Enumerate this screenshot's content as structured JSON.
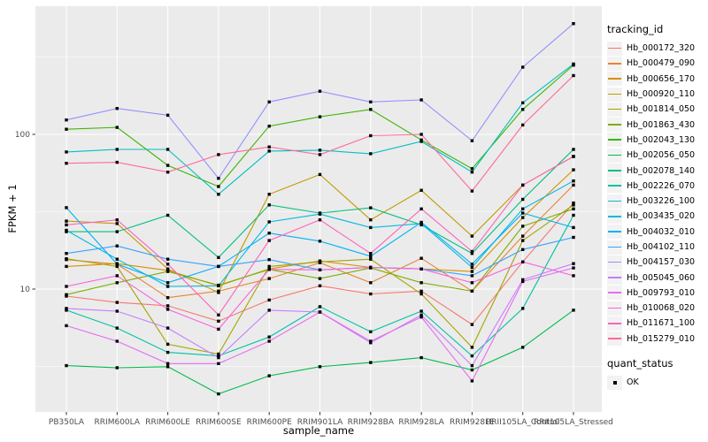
{
  "chart_data": {
    "type": "line",
    "title": "",
    "x_axis": {
      "title": "sample_name",
      "categories": [
        "PB350LA",
        "RRIM600LA",
        "RRIM600LE",
        "RRIM600SE",
        "RRIM600PE",
        "RRIM901LA",
        "RRIM928BA",
        "RRIM928LA",
        "RRIM928LE",
        "RRII105LA_Control",
        "RRII105LA_Stressed"
      ]
    },
    "y_axis": {
      "title": "FPKM + 1",
      "scale": "log10",
      "major_ticks": [
        {
          "value": 10,
          "label": "10"
        },
        {
          "value": 100,
          "label": "100"
        }
      ],
      "minor_ticks": [
        3.162,
        31.62,
        316.23
      ],
      "range": [
        1.6,
        665
      ]
    },
    "legend": {
      "title": "tracking_id"
    },
    "legend2": {
      "title": "quant_status",
      "items": [
        {
          "label": "OK",
          "marker": "filled-square",
          "color": "#000000"
        }
      ]
    },
    "series": [
      {
        "name": "Hb_000172_320",
        "color": "#F8766D",
        "values": [
          9.0,
          8.2,
          7.8,
          6.2,
          8.5,
          10.5,
          9.3,
          9.7,
          5.9,
          15,
          36
        ]
      },
      {
        "name": "Hb_000479_090",
        "color": "#EA8331",
        "values": [
          15.5,
          14.5,
          8.8,
          9.7,
          11.7,
          14.8,
          11.0,
          15.8,
          9.7,
          22,
          47
        ]
      },
      {
        "name": "Hb_000656_170",
        "color": "#D89000",
        "values": [
          14.0,
          14.6,
          13.2,
          10.5,
          13.5,
          15.2,
          13.8,
          13.5,
          13.0,
          29,
          59
        ]
      },
      {
        "name": "Hb_000920_110",
        "color": "#C09B00",
        "values": [
          27.5,
          26.5,
          13.5,
          9.5,
          41,
          55,
          28,
          43.5,
          22,
          47,
          72
        ]
      },
      {
        "name": "Hb_001814_050",
        "color": "#A3A500",
        "values": [
          15.7,
          14.0,
          4.4,
          3.8,
          14.0,
          15.0,
          15.6,
          9.3,
          4.2,
          20.6,
          35
        ]
      },
      {
        "name": "Hb_001863_430",
        "color": "#7CAE00",
        "values": [
          9.2,
          11.0,
          13.0,
          10.6,
          13.4,
          11.7,
          13.7,
          11.0,
          9.7,
          25.5,
          33
        ]
      },
      {
        "name": "Hb_002043_130",
        "color": "#39B600",
        "values": [
          108,
          111,
          63,
          46,
          113,
          130,
          145,
          92,
          60,
          145,
          280
        ]
      },
      {
        "name": "Hb_002056_050",
        "color": "#00BB4E",
        "values": [
          3.2,
          3.1,
          3.15,
          2.1,
          2.75,
          3.15,
          3.35,
          3.6,
          3.0,
          4.2,
          7.3
        ]
      },
      {
        "name": "Hb_002078_140",
        "color": "#00BF7D",
        "values": [
          23.5,
          23.5,
          30,
          16,
          35,
          31,
          33.5,
          26,
          17,
          38,
          80
        ]
      },
      {
        "name": "Hb_002226_070",
        "color": "#00C1A3",
        "values": [
          7.3,
          5.6,
          3.9,
          3.7,
          4.9,
          7.7,
          5.3,
          7.2,
          3.7,
          7.5,
          30
        ]
      },
      {
        "name": "Hb_003226_100",
        "color": "#00BFC4",
        "values": [
          77,
          80,
          80,
          41,
          78,
          79,
          75,
          90,
          57,
          160,
          285
        ]
      },
      {
        "name": "Hb_003435_020",
        "color": "#00BAE0",
        "values": [
          24,
          15.6,
          10.4,
          10.5,
          27.2,
          30.5,
          25,
          26.5,
          13.8,
          33,
          50
        ]
      },
      {
        "name": "Hb_004032_010",
        "color": "#00B0F6",
        "values": [
          33.6,
          14.5,
          11,
          14,
          23,
          20.4,
          16.3,
          27,
          14.5,
          31,
          25
        ]
      },
      {
        "name": "Hb_004102_110",
        "color": "#35A2FF",
        "values": [
          17,
          19,
          15.6,
          14,
          15.5,
          13.3,
          13.8,
          13.5,
          12.2,
          18,
          21.6
        ]
      },
      {
        "name": "Hb_004157_030",
        "color": "#9590FF",
        "values": [
          124,
          147,
          133,
          52,
          162,
          190,
          162,
          167,
          91,
          272,
          520
        ]
      },
      {
        "name": "Hb_005045_060",
        "color": "#C77CFF",
        "values": [
          7.5,
          7.2,
          5.6,
          3.6,
          7.3,
          7.1,
          4.5,
          6.8,
          3.2,
          11.5,
          14.6
        ]
      },
      {
        "name": "Hb_009793_010",
        "color": "#E76BF3",
        "values": [
          5.8,
          4.6,
          3.3,
          3.3,
          4.6,
          7.1,
          4.6,
          6.6,
          2.55,
          11.2,
          13.7
        ]
      },
      {
        "name": "Hb_010068_020",
        "color": "#FA62DB",
        "values": [
          10.4,
          12.2,
          7.4,
          5.5,
          13.4,
          13.3,
          13.8,
          13.5,
          11.0,
          15,
          12.2
        ]
      },
      {
        "name": "Hb_011671_100",
        "color": "#FF62BC",
        "values": [
          26,
          28,
          14.5,
          6.8,
          20.6,
          28,
          17,
          33,
          17.5,
          47,
          72
        ]
      },
      {
        "name": "Hb_015279_010",
        "color": "#FF6A98",
        "values": [
          65,
          66,
          57,
          74,
          83,
          74,
          98,
          100,
          43,
          115,
          240
        ]
      }
    ],
    "style": {
      "panel_bg": "#EBEBEB",
      "grid_color": "#FFFFFF",
      "tick_label_color": "#4D4D4D",
      "marker_color": "#000000",
      "grid": "on",
      "legend_position": "right"
    }
  }
}
